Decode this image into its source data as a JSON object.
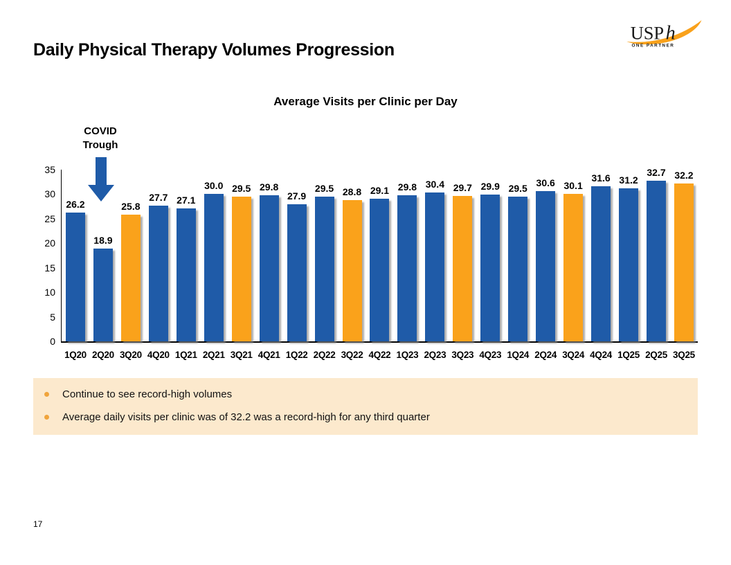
{
  "slide": {
    "title": "Daily Physical Therapy Volumes Progression",
    "page_number": "17",
    "logo": {
      "name": "USP",
      "name_italic": "h",
      "tagline": "ONE PARTNER",
      "swoosh_color": "#F9A11B"
    }
  },
  "chart_data": {
    "type": "bar",
    "title": "Average Visits per Clinic per Day",
    "categories": [
      "1Q20",
      "2Q20",
      "3Q20",
      "4Q20",
      "1Q21",
      "2Q21",
      "3Q21",
      "4Q21",
      "1Q22",
      "2Q22",
      "3Q22",
      "4Q22",
      "1Q23",
      "2Q23",
      "3Q23",
      "4Q23",
      "1Q24",
      "2Q24",
      "3Q24",
      "4Q24",
      "1Q25",
      "2Q25",
      "3Q25"
    ],
    "values": [
      26.2,
      18.9,
      25.8,
      27.7,
      27.1,
      30.0,
      29.5,
      29.8,
      27.9,
      29.5,
      28.8,
      29.1,
      29.8,
      30.4,
      29.7,
      29.9,
      29.5,
      30.6,
      30.1,
      31.6,
      31.2,
      32.7,
      32.2
    ],
    "highlighted_categories": [
      "3Q20",
      "3Q21",
      "3Q22",
      "3Q23",
      "3Q24",
      "3Q25"
    ],
    "ylim": [
      0,
      35
    ],
    "yticks": [
      0,
      5,
      10,
      15,
      20,
      25,
      30,
      35
    ],
    "grid": false,
    "legend": false,
    "value_label_decimals": 1,
    "colors": {
      "bar_primary": "#1F5BA8",
      "bar_highlight": "#FAA21B",
      "annotation_arrow": "#1F5BA8"
    },
    "annotation": {
      "line1": "COVID",
      "line2": "Trough",
      "target_category": "2Q20"
    }
  },
  "bullets": {
    "background": "#FCE9CD",
    "bullet_color": "#F0A43C",
    "items": [
      "Continue to see record-high volumes",
      "Average daily visits per clinic was of 32.2 was a record-high for any third quarter"
    ]
  }
}
